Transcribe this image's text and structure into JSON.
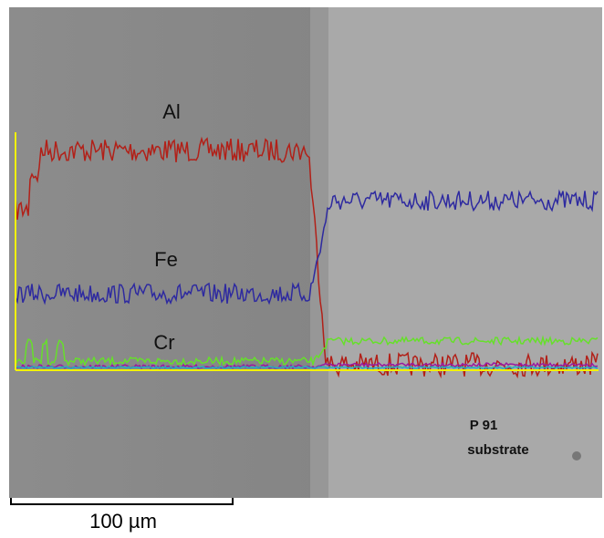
{
  "labels": {
    "al": "Al",
    "fe": "Fe",
    "cr": "Cr"
  },
  "sample": {
    "name": "P 91",
    "description": "substrate"
  },
  "scale_bar": {
    "label": "100 µm"
  }
}
